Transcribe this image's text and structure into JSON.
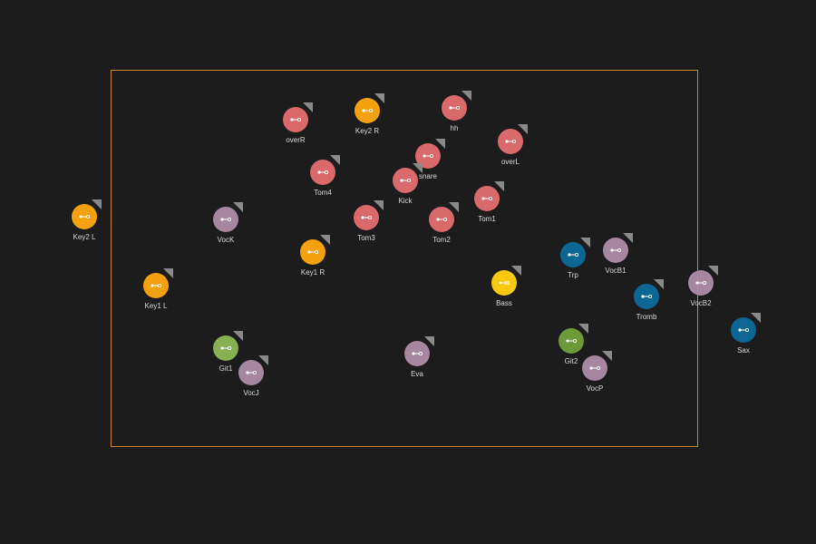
{
  "colors": {
    "background": "#1c1c1c",
    "frame": "#c8892a",
    "drums": "#d9696b",
    "keys": "#f5a00f",
    "vocals": "#a7879f",
    "brass": "#0d6795",
    "guitar": "#86b052",
    "guitar2": "#6c9a3a",
    "bass": "#f9c90f",
    "label": "#d8d8d8",
    "corner": "#8a8a8a"
  },
  "channels": [
    {
      "label": "overR",
      "group": "drums",
      "icon": "link-icon"
    },
    {
      "label": "Key2 R",
      "group": "keys",
      "icon": "link-icon"
    },
    {
      "label": "hh",
      "group": "drums",
      "icon": "link-icon"
    },
    {
      "label": "overL",
      "group": "drums",
      "icon": "link-icon"
    },
    {
      "label": "snare",
      "group": "drums",
      "icon": "link-icon"
    },
    {
      "label": "Tom4",
      "group": "drums",
      "icon": "link-icon"
    },
    {
      "label": "Kick",
      "group": "drums",
      "icon": "link-icon"
    },
    {
      "label": "Tom1",
      "group": "drums",
      "icon": "link-icon"
    },
    {
      "label": "Key2 L",
      "group": "keys",
      "icon": "link-icon"
    },
    {
      "label": "VocK",
      "group": "vocals",
      "icon": "link-icon"
    },
    {
      "label": "Tom3",
      "group": "drums",
      "icon": "link-icon"
    },
    {
      "label": "Tom2",
      "group": "drums",
      "icon": "link-icon"
    },
    {
      "label": "Key1 R",
      "group": "keys",
      "icon": "link-icon"
    },
    {
      "label": "Trp",
      "group": "brass",
      "icon": "link-icon"
    },
    {
      "label": "VocB1",
      "group": "vocals",
      "icon": "link-icon"
    },
    {
      "label": "Key1 L",
      "group": "keys",
      "icon": "link-icon"
    },
    {
      "label": "Bass",
      "group": "bass",
      "icon": "link-icon"
    },
    {
      "label": "VocB2",
      "group": "vocals",
      "icon": "link-icon"
    },
    {
      "label": "Tromb",
      "group": "brass",
      "icon": "link-icon"
    },
    {
      "label": "Sax",
      "group": "brass",
      "icon": "link-icon"
    },
    {
      "label": "Git1",
      "group": "guitar",
      "icon": "link-icon"
    },
    {
      "label": "Eva",
      "group": "vocals",
      "icon": "link-icon"
    },
    {
      "label": "Git2",
      "group": "guitar2",
      "icon": "link-icon"
    },
    {
      "label": "VocJ",
      "group": "vocals",
      "icon": "link-icon"
    },
    {
      "label": "VocP",
      "group": "vocals",
      "icon": "link-icon"
    }
  ]
}
